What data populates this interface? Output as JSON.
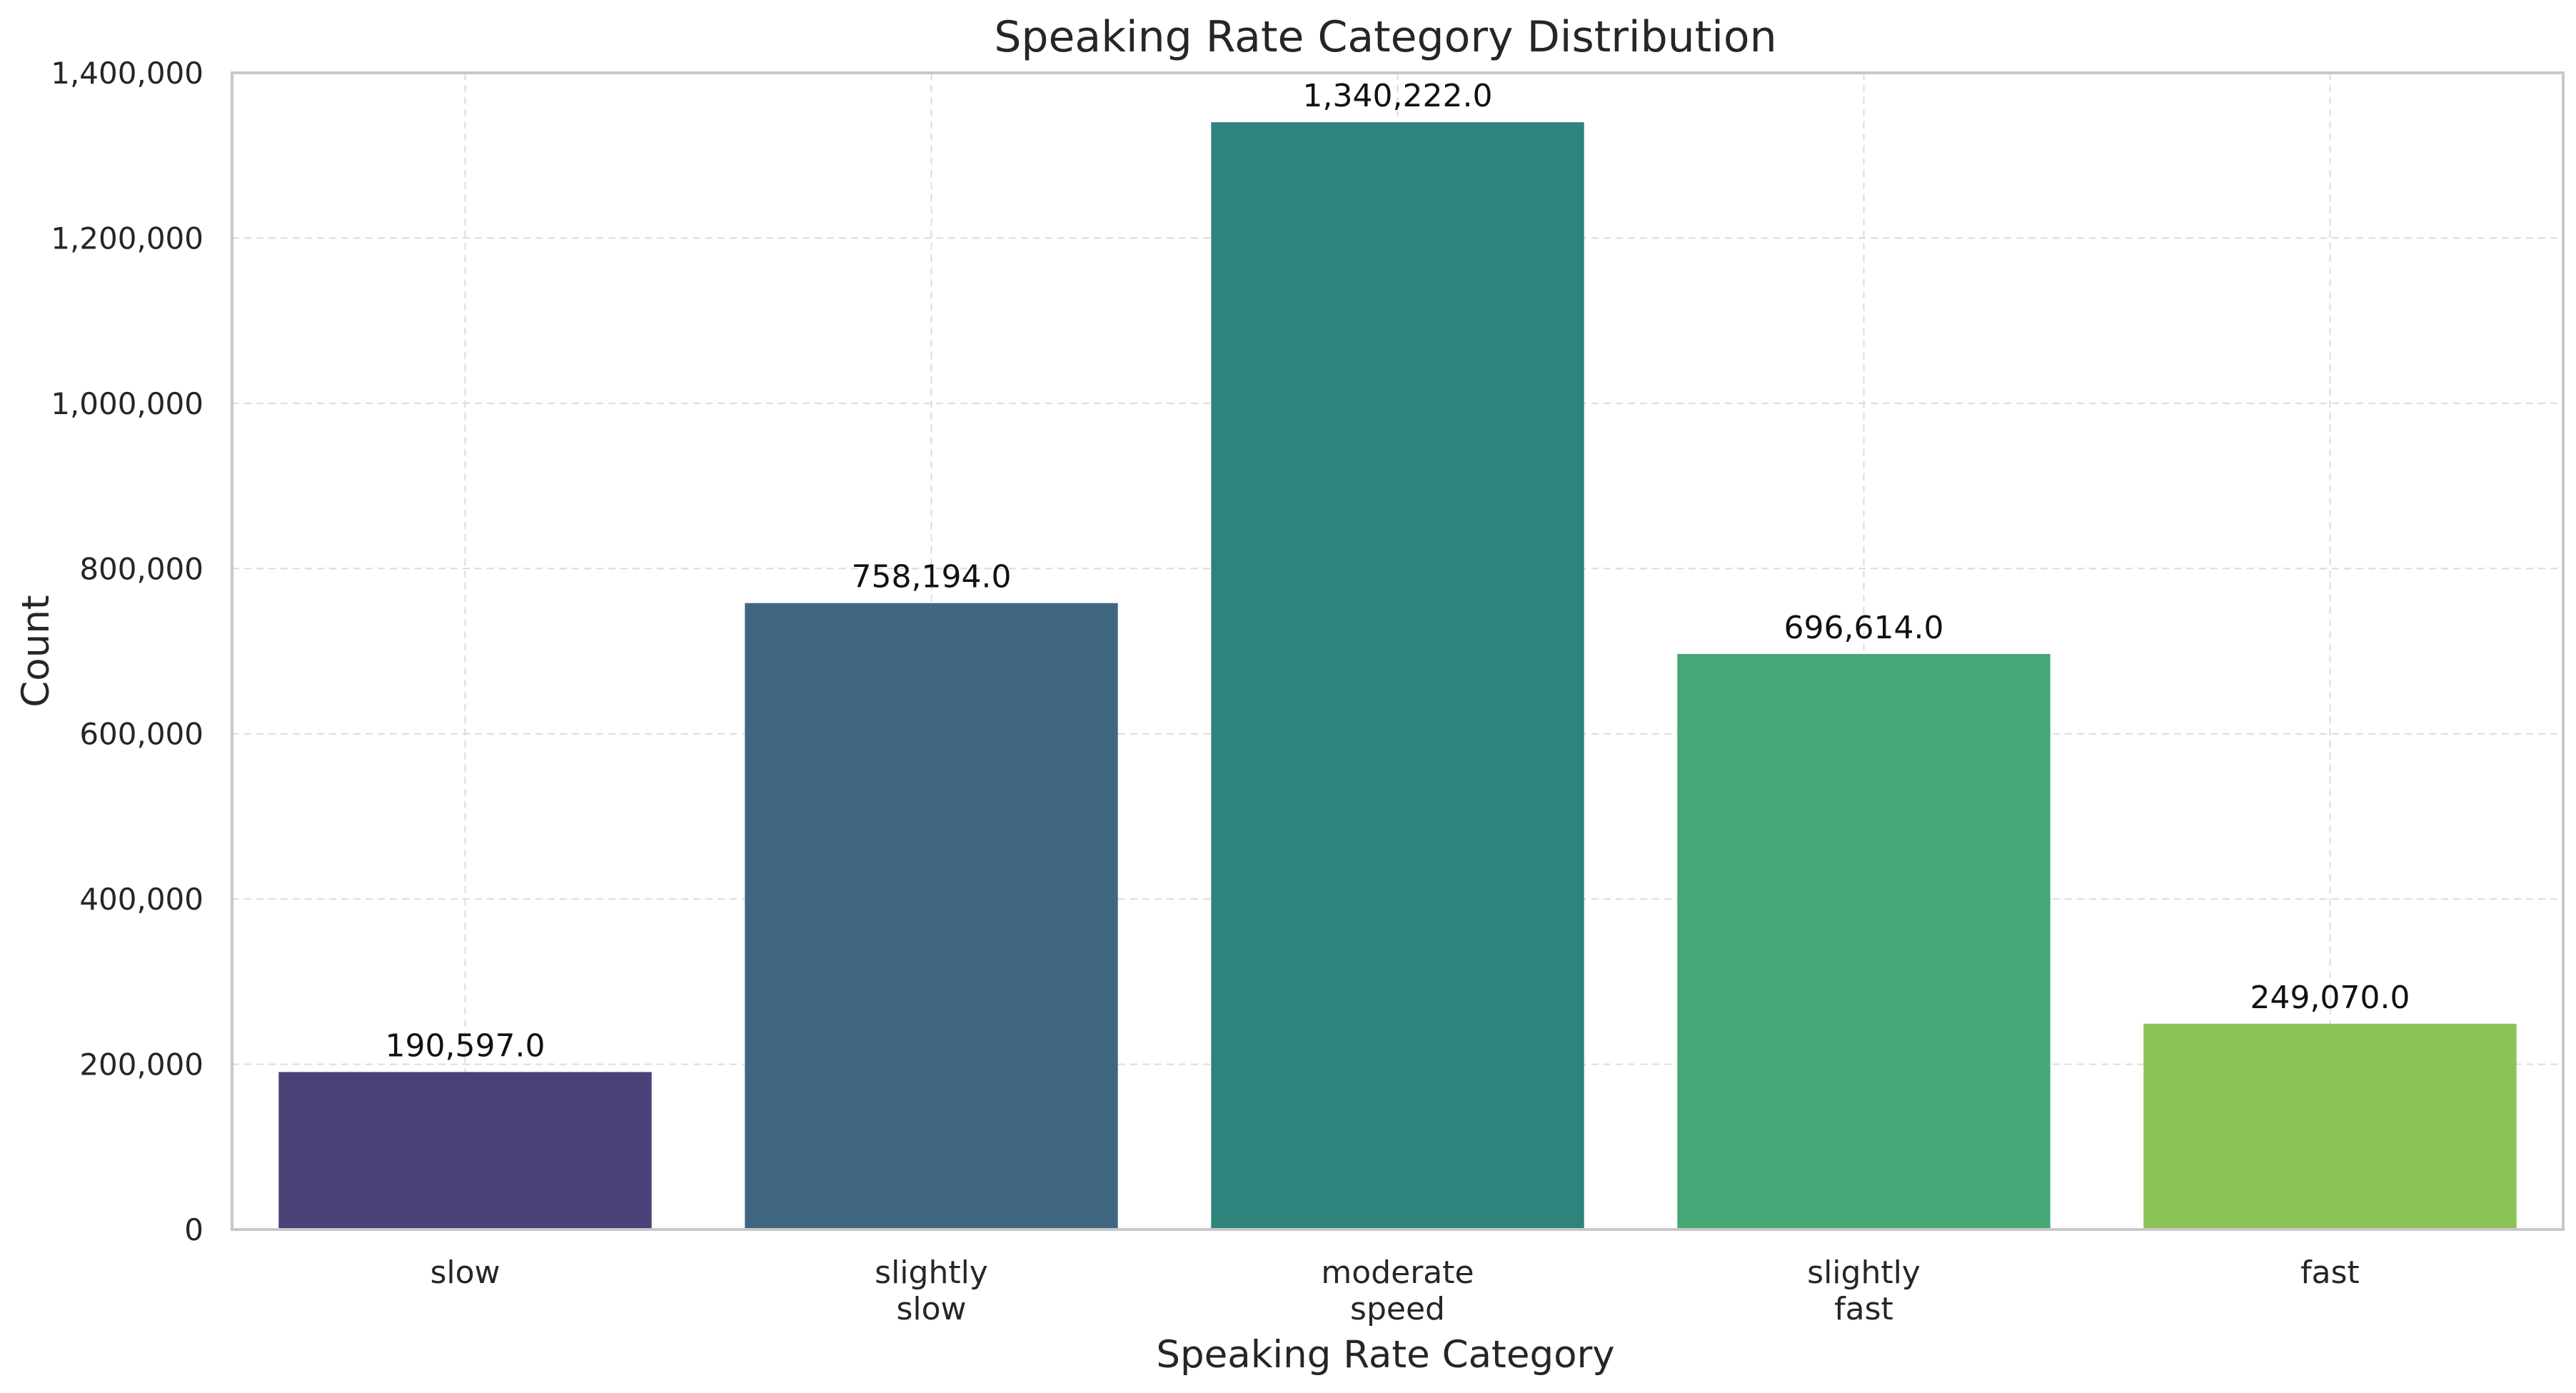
{
  "chart_data": {
    "type": "bar",
    "title": "Speaking Rate Category Distribution",
    "xlabel": "Speaking Rate Category",
    "ylabel": "Count",
    "categories": [
      "slow",
      "slightly slow",
      "moderate speed",
      "slightly fast",
      "fast"
    ],
    "category_label_lines": [
      [
        "slow"
      ],
      [
        "slightly",
        "slow"
      ],
      [
        "moderate",
        "speed"
      ],
      [
        "slightly",
        "fast"
      ],
      [
        "fast"
      ]
    ],
    "values": [
      190597.0,
      758194.0,
      1340222.0,
      696614.0,
      249070.0
    ],
    "data_labels": [
      "190,597.0",
      "758,194.0",
      "1,340,222.0",
      "696,614.0",
      "249,070.0"
    ],
    "bar_colors": [
      "#4b4077",
      "#3f6781",
      "#2e847c",
      "#47a877",
      "#8bc456"
    ],
    "ylim": [
      0,
      1400000
    ],
    "yticks": [
      0,
      200000,
      400000,
      600000,
      800000,
      1000000,
      1200000,
      1400000
    ],
    "ytick_labels": [
      "0",
      "200,000",
      "400,000",
      "600,000",
      "800,000",
      "1,000,000",
      "1,200,000",
      "1,400,000"
    ],
    "grid": true
  }
}
